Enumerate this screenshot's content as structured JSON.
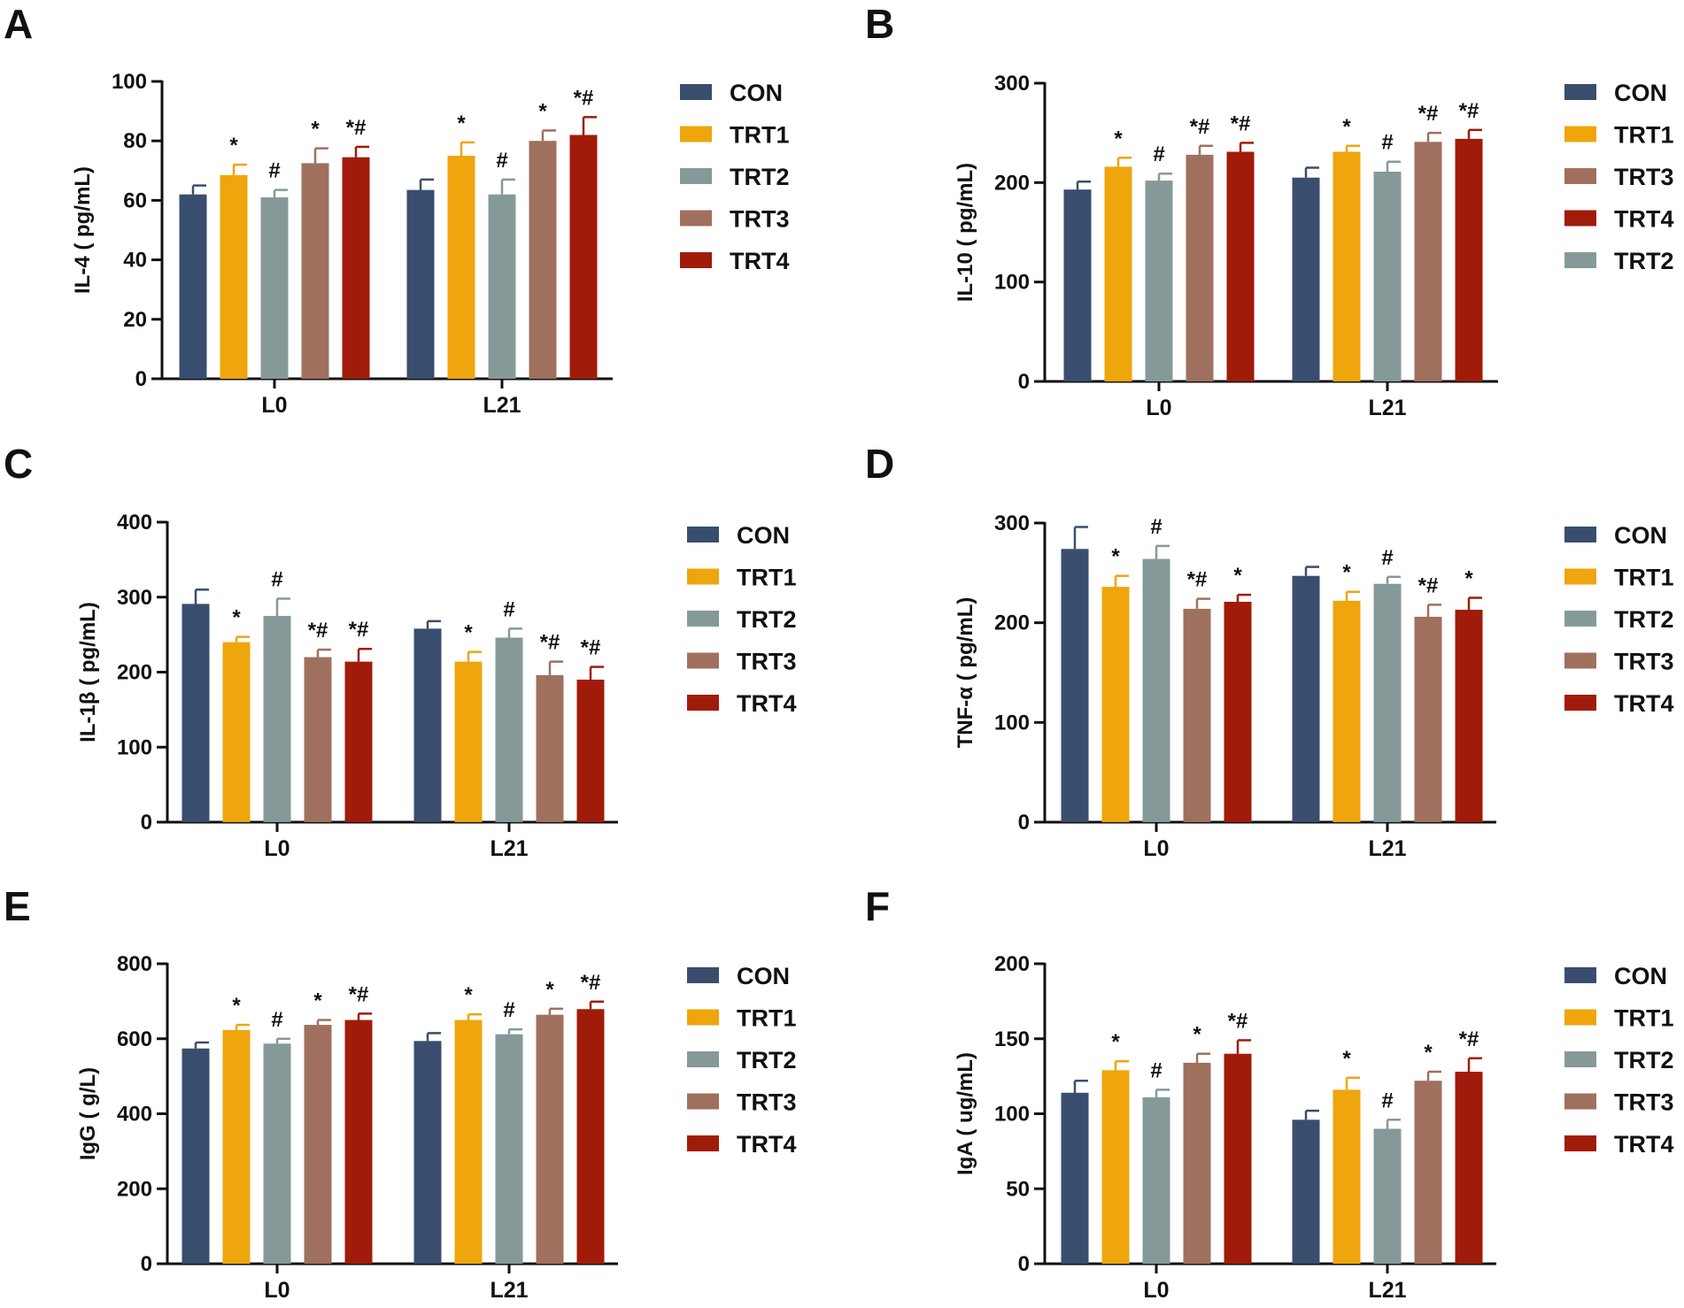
{
  "colors": {
    "CON": "#394e6e",
    "TRT1": "#efa50c",
    "TRT2": "#859a98",
    "TRT3": "#a0705e",
    "TRT4": "#a11b0a",
    "axis": "#111111"
  },
  "chart_data": [
    {
      "type": "bar",
      "panel": "A",
      "ylabel": "IL-4 ( pg/mL)",
      "ylim": [
        0,
        100
      ],
      "yticks": [
        0,
        20,
        40,
        60,
        80,
        100
      ],
      "categories": [
        "L0",
        "L21"
      ],
      "series": [
        {
          "name": "CON",
          "values": [
            62,
            63.5
          ],
          "errors": [
            3,
            3.5
          ],
          "sig": [
            "",
            ""
          ]
        },
        {
          "name": "TRT1",
          "values": [
            68.5,
            75
          ],
          "errors": [
            3.5,
            4.5
          ],
          "sig": [
            "*",
            "*"
          ]
        },
        {
          "name": "TRT2",
          "values": [
            61,
            62
          ],
          "errors": [
            2.5,
            5
          ],
          "sig": [
            "#",
            "#"
          ]
        },
        {
          "name": "TRT3",
          "values": [
            72.5,
            80
          ],
          "errors": [
            5,
            3.5
          ],
          "sig": [
            "*",
            "*"
          ]
        },
        {
          "name": "TRT4",
          "values": [
            74.5,
            82
          ],
          "errors": [
            3.5,
            6
          ],
          "sig": [
            "*#",
            "*#"
          ]
        }
      ],
      "legend": [
        "CON",
        "TRT1",
        "TRT2",
        "TRT3",
        "TRT4"
      ]
    },
    {
      "type": "bar",
      "panel": "B",
      "ylabel": "IL-10 ( pg/mL)",
      "ylim": [
        0,
        300
      ],
      "yticks": [
        0,
        100,
        200,
        300
      ],
      "categories": [
        "L0",
        "L21"
      ],
      "series": [
        {
          "name": "CON",
          "values": [
            193,
            205
          ],
          "errors": [
            8,
            10
          ],
          "sig": [
            "",
            ""
          ]
        },
        {
          "name": "TRT1",
          "values": [
            216,
            231
          ],
          "errors": [
            9,
            6
          ],
          "sig": [
            "*",
            "*"
          ]
        },
        {
          "name": "TRT2",
          "values": [
            202,
            211
          ],
          "errors": [
            7,
            10
          ],
          "sig": [
            "#",
            "#"
          ]
        },
        {
          "name": "TRT3",
          "values": [
            228,
            241
          ],
          "errors": [
            9,
            9
          ],
          "sig": [
            "*#",
            "*#"
          ]
        },
        {
          "name": "TRT4",
          "values": [
            231,
            244
          ],
          "errors": [
            9,
            9
          ],
          "sig": [
            "*#",
            "*#"
          ]
        }
      ],
      "legend": [
        "CON",
        "TRT1",
        "TRT3",
        "TRT4",
        "TRT2"
      ]
    },
    {
      "type": "bar",
      "panel": "C",
      "ylabel": "IL-1β ( pg/mL)",
      "ylim": [
        0,
        400
      ],
      "yticks": [
        0,
        100,
        200,
        300,
        400
      ],
      "categories": [
        "L0",
        "L21"
      ],
      "series": [
        {
          "name": "CON",
          "values": [
            291,
            258
          ],
          "errors": [
            19,
            10
          ],
          "sig": [
            "",
            ""
          ]
        },
        {
          "name": "TRT1",
          "values": [
            240,
            214
          ],
          "errors": [
            7,
            13
          ],
          "sig": [
            "*",
            "*"
          ]
        },
        {
          "name": "TRT2",
          "values": [
            275,
            246
          ],
          "errors": [
            23,
            12
          ],
          "sig": [
            "#",
            "#"
          ]
        },
        {
          "name": "TRT3",
          "values": [
            220,
            196
          ],
          "errors": [
            10,
            18
          ],
          "sig": [
            "*#",
            "*#"
          ]
        },
        {
          "name": "TRT4",
          "values": [
            214,
            190
          ],
          "errors": [
            17,
            17
          ],
          "sig": [
            "*#",
            "*#"
          ]
        }
      ],
      "legend": [
        "CON",
        "TRT1",
        "TRT2",
        "TRT3",
        "TRT4"
      ]
    },
    {
      "type": "bar",
      "panel": "D",
      "ylabel": "TNF-α ( pg/mL)",
      "ylim": [
        0,
        300
      ],
      "yticks": [
        0,
        100,
        200,
        300
      ],
      "categories": [
        "L0",
        "L21"
      ],
      "series": [
        {
          "name": "CON",
          "values": [
            274,
            247
          ],
          "errors": [
            22,
            9
          ],
          "sig": [
            "",
            ""
          ]
        },
        {
          "name": "TRT1",
          "values": [
            236,
            222
          ],
          "errors": [
            11,
            9
          ],
          "sig": [
            "*",
            "*"
          ]
        },
        {
          "name": "TRT2",
          "values": [
            264,
            239
          ],
          "errors": [
            13,
            7
          ],
          "sig": [
            "#",
            "#"
          ]
        },
        {
          "name": "TRT3",
          "values": [
            214,
            206
          ],
          "errors": [
            10,
            12
          ],
          "sig": [
            "*#",
            "*#"
          ]
        },
        {
          "name": "TRT4",
          "values": [
            221,
            213
          ],
          "errors": [
            7,
            12
          ],
          "sig": [
            "*",
            "*"
          ]
        }
      ],
      "legend": [
        "CON",
        "TRT1",
        "TRT2",
        "TRT3",
        "TRT4"
      ]
    },
    {
      "type": "bar",
      "panel": "E",
      "ylabel": "IgG ( g/L)",
      "ylim": [
        0,
        800
      ],
      "yticks": [
        0,
        200,
        400,
        600,
        800
      ],
      "categories": [
        "L0",
        "L21"
      ],
      "series": [
        {
          "name": "CON",
          "values": [
            574,
            594
          ],
          "errors": [
            16,
            21
          ],
          "sig": [
            "",
            ""
          ]
        },
        {
          "name": "TRT1",
          "values": [
            623,
            650
          ],
          "errors": [
            14,
            15
          ],
          "sig": [
            "*",
            "*"
          ]
        },
        {
          "name": "TRT2",
          "values": [
            587,
            612
          ],
          "errors": [
            13,
            13
          ],
          "sig": [
            "#",
            "#"
          ]
        },
        {
          "name": "TRT3",
          "values": [
            637,
            664
          ],
          "errors": [
            13,
            16
          ],
          "sig": [
            "*",
            "*"
          ]
        },
        {
          "name": "TRT4",
          "values": [
            650,
            679
          ],
          "errors": [
            17,
            20
          ],
          "sig": [
            "*#",
            "*#"
          ]
        }
      ],
      "legend": [
        "CON",
        "TRT1",
        "TRT2",
        "TRT3",
        "TRT4"
      ]
    },
    {
      "type": "bar",
      "panel": "F",
      "ylabel": "IgA ( ug/mL)",
      "ylim": [
        0,
        200
      ],
      "yticks": [
        0,
        50,
        100,
        150,
        200
      ],
      "categories": [
        "L0",
        "L21"
      ],
      "series": [
        {
          "name": "CON",
          "values": [
            114,
            96
          ],
          "errors": [
            8,
            6
          ],
          "sig": [
            "",
            ""
          ]
        },
        {
          "name": "TRT1",
          "values": [
            129,
            116
          ],
          "errors": [
            6,
            8
          ],
          "sig": [
            "*",
            "*"
          ]
        },
        {
          "name": "TRT2",
          "values": [
            111,
            90
          ],
          "errors": [
            5,
            6
          ],
          "sig": [
            "#",
            "#"
          ]
        },
        {
          "name": "TRT3",
          "values": [
            134,
            122
          ],
          "errors": [
            6,
            6
          ],
          "sig": [
            "*",
            "*"
          ]
        },
        {
          "name": "TRT4",
          "values": [
            140,
            128
          ],
          "errors": [
            9,
            9
          ],
          "sig": [
            "*#",
            "*#"
          ]
        }
      ],
      "legend": [
        "CON",
        "TRT1",
        "TRT2",
        "TRT3",
        "TRT4"
      ]
    }
  ]
}
